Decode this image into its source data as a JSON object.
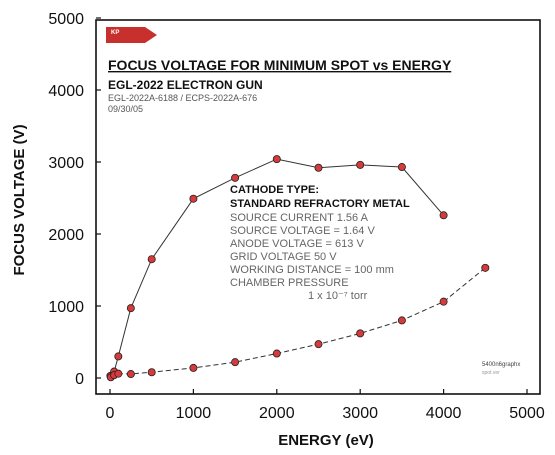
{
  "chart_data": {
    "type": "scatter",
    "title": "FOCUS VOLTAGE FOR MINIMUM SPOT vs ENERGY",
    "xlabel": "ENERGY (eV)",
    "ylabel": "FOCUS VOLTAGE (V)",
    "xlim": [
      0,
      5000
    ],
    "ylim": [
      0,
      5000
    ],
    "xticks": [
      0,
      1000,
      2000,
      3000,
      4000,
      5000
    ],
    "yticks": [
      0,
      1000,
      2000,
      3000,
      4000,
      5000
    ],
    "grid": false,
    "series": [
      {
        "line_style": "solid",
        "x": [
          5,
          50,
          100,
          250,
          500,
          1000,
          1500,
          2000,
          2500,
          3000,
          3500,
          4000
        ],
        "y": [
          30,
          90,
          300,
          970,
          1650,
          2490,
          2780,
          3040,
          2920,
          2960,
          2930,
          2260
        ]
      },
      {
        "line_style": "dashed",
        "x": [
          10,
          50,
          100,
          250,
          500,
          1000,
          1500,
          2000,
          2500,
          3000,
          3500,
          4000,
          4500
        ],
        "y": [
          10,
          40,
          60,
          55,
          80,
          140,
          220,
          340,
          470,
          620,
          800,
          1060,
          1530
        ]
      }
    ],
    "marker_color": "#d63a3a",
    "line_color": "#333333"
  },
  "annotations": {
    "logo": "KP",
    "title": "FOCUS VOLTAGE FOR MINIMUM SPOT vs ENERGY",
    "gun": "EGL-2022 ELECTRON GUN",
    "model": "EGL-2022A-6188 / ECPS-2022A-676",
    "date": "09/30/05",
    "cathode_type": "CATHODE TYPE:",
    "cathode_material": "STANDARD REFRACTORY METAL",
    "params": [
      "SOURCE CURRENT    1.56 A",
      "SOURCE VOLTAGE = 1.64 V",
      "ANODE VOLTAGE = 613 V",
      "GRID VOLTAGE   50 V",
      "WORKING DISTANCE = 100 mm",
      "CHAMBER PRESSURE"
    ],
    "pressure": "1 x 10⁻⁷ torr",
    "footer_1": "5400n6graphx",
    "footer_2": "spot.ver"
  },
  "colors": {
    "logo": "#c8302e",
    "marker": "#d63a3a"
  }
}
